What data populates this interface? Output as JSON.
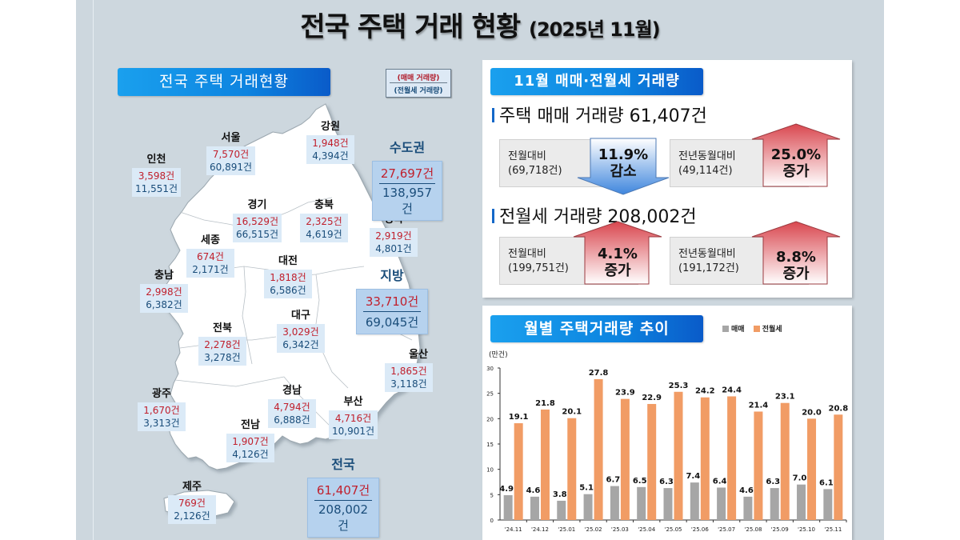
{
  "title": {
    "main": "전국 주택 거래 현황",
    "sub": "(2025년 11월)"
  },
  "map_section": {
    "banner": "전국 주택 거래현황",
    "legend": {
      "sale_label": "(매매 거래량)",
      "rent_label": "(전월세 거래량)"
    },
    "regions": [
      {
        "name": "인천",
        "sale": "3,598건",
        "rent": "11,551건"
      },
      {
        "name": "서울",
        "sale": "7,570건",
        "rent": "60,891건"
      },
      {
        "name": "강원",
        "sale": "1,948건",
        "rent": "4,394건"
      },
      {
        "name": "경기",
        "sale": "16,529건",
        "rent": "66,515건"
      },
      {
        "name": "충북",
        "sale": "2,325건",
        "rent": "4,619건"
      },
      {
        "name": "경북",
        "sale": "2,919건",
        "rent": "4,801건"
      },
      {
        "name": "세종",
        "sale": "674건",
        "rent": "2,171건"
      },
      {
        "name": "충남",
        "sale": "2,998건",
        "rent": "6,382건"
      },
      {
        "name": "대전",
        "sale": "1,818건",
        "rent": "6,586건"
      },
      {
        "name": "전북",
        "sale": "2,278건",
        "rent": "3,278건"
      },
      {
        "name": "대구",
        "sale": "3,029건",
        "rent": "6,342건"
      },
      {
        "name": "울산",
        "sale": "1,865건",
        "rent": "3,118건"
      },
      {
        "name": "경남",
        "sale": "4,794건",
        "rent": "6,888건"
      },
      {
        "name": "광주",
        "sale": "1,670건",
        "rent": "3,313건"
      },
      {
        "name": "부산",
        "sale": "4,716건",
        "rent": "10,901건"
      },
      {
        "name": "전남",
        "sale": "1,907건",
        "rent": "4,126건"
      },
      {
        "name": "제주",
        "sale": "769건",
        "rent": "2,126건"
      }
    ],
    "aggregates": [
      {
        "name": "수도권",
        "sale": "27,697건",
        "rent": "138,957건"
      },
      {
        "name": "지방",
        "sale": "33,710건",
        "rent": "69,045건"
      },
      {
        "name": "전국",
        "sale": "61,407건",
        "rent": "208,002건"
      }
    ]
  },
  "summary_panel": {
    "banner": "11월 매매·전월세 거래량",
    "sale": {
      "heading": "주택 매매 거래량 61,407건",
      "mom": {
        "label": "전월대비",
        "base": "(69,718건)",
        "pct": "11.9%",
        "dir": "감소"
      },
      "yoy": {
        "label": "전년동월대비",
        "base": "(49,114건)",
        "pct": "25.0%",
        "dir": "증가"
      }
    },
    "rent": {
      "heading": "전월세 거래량 208,002건",
      "mom": {
        "label": "전월대비",
        "base": "(199,751건)",
        "pct": "4.1%",
        "dir": "증가"
      },
      "yoy": {
        "label": "전년동월대비",
        "base": "(191,172건)",
        "pct": "8.8%",
        "dir": "증가"
      }
    },
    "colors": {
      "up": "#d9474f",
      "down": "#3f86dd"
    }
  },
  "chart_panel": {
    "banner": "월별 주택거래량 추이",
    "legend": [
      {
        "label": "매매",
        "color": "#a6a6a6"
      },
      {
        "label": "전월세",
        "color": "#f19c65"
      }
    ],
    "unit": "(만건)"
  },
  "chart_data": {
    "type": "bar",
    "title": "월별 주택거래량 추이",
    "xlabel": "",
    "ylabel": "(만건)",
    "ylim": [
      0,
      30
    ],
    "yticks": [
      0,
      5,
      10,
      15,
      20,
      25,
      30
    ],
    "grid": false,
    "legend_position": "top-right",
    "categories": [
      "'24.11",
      "'24.12",
      "'25.01",
      "'25.02",
      "'25.03",
      "'25.04",
      "'25.05",
      "'25.06",
      "'25.07",
      "'25.08",
      "'25.09",
      "'25.10",
      "'25.11"
    ],
    "series": [
      {
        "name": "매매",
        "color": "#a6a6a6",
        "values": [
          4.9,
          4.6,
          3.8,
          5.1,
          6.7,
          6.5,
          6.3,
          7.4,
          6.4,
          4.6,
          6.3,
          7.0,
          6.1
        ]
      },
      {
        "name": "전월세",
        "color": "#f19c65",
        "values": [
          19.1,
          21.8,
          20.1,
          27.8,
          23.9,
          22.9,
          25.3,
          24.2,
          24.4,
          21.4,
          23.1,
          20.0,
          20.8
        ]
      }
    ]
  }
}
